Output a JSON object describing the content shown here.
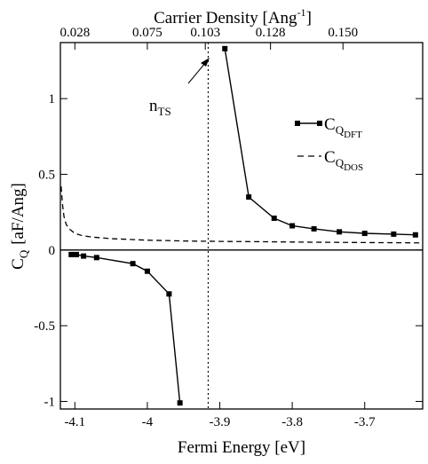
{
  "chart_data": {
    "type": "line",
    "xlabel": "Fermi Energy [eV]",
    "ylabel_main": "C",
    "ylabel_sub": "Q",
    "ylabel_unit": "[aF/Ang]",
    "top_axis_label": "Carrier Density [Ang",
    "top_axis_exponent": "-1",
    "top_axis_close": "]",
    "xlim": [
      -4.12,
      -3.62
    ],
    "ylim": [
      -1.05,
      1.37
    ],
    "grid": false,
    "legend_position": "right",
    "x_ticks": [
      {
        "value": -4.1,
        "label": "-4.1"
      },
      {
        "value": -4.0,
        "label": "-4"
      },
      {
        "value": -3.9,
        "label": "-3.9"
      },
      {
        "value": -3.8,
        "label": "-3.8"
      },
      {
        "value": -3.7,
        "label": "-3.7"
      }
    ],
    "y_ticks": [
      {
        "value": -1,
        "label": "-1"
      },
      {
        "value": -0.5,
        "label": "-0.5"
      },
      {
        "value": 0,
        "label": "0"
      },
      {
        "value": 0.5,
        "label": "0.5"
      },
      {
        "value": 1,
        "label": "1"
      }
    ],
    "top_ticks": [
      {
        "position": -4.1,
        "label": "0.028"
      },
      {
        "position": -4.0,
        "label": "0.075"
      },
      {
        "position": -3.92,
        "label": "0.103"
      },
      {
        "position": -3.83,
        "label": "0.128"
      },
      {
        "position": -3.73,
        "label": "0.150"
      }
    ],
    "series": [
      {
        "name_main": "C",
        "name_sub": "Q",
        "name_subsub": "DFT",
        "style": "solid-square-markers",
        "segments": [
          {
            "x": [
              -4.105,
              -4.098,
              -4.088,
              -4.07,
              -4.02,
              -4.0,
              -3.97,
              -3.955
            ],
            "y": [
              -0.03,
              -0.03,
              -0.04,
              -0.05,
              -0.09,
              -0.14,
              -0.29,
              -1.01
            ]
          },
          {
            "x": [
              -3.893,
              -3.86,
              -3.825,
              -3.8,
              -3.77,
              -3.735,
              -3.7,
              -3.66,
              -3.63
            ],
            "y": [
              1.33,
              0.35,
              0.21,
              0.16,
              0.14,
              0.12,
              0.11,
              0.105,
              0.1
            ]
          }
        ]
      },
      {
        "name_main": "C",
        "name_sub": "Q",
        "name_subsub": "DOS",
        "style": "dashed",
        "x": [
          -4.119,
          -4.117,
          -4.115,
          -4.112,
          -4.108,
          -4.1,
          -4.09,
          -4.075,
          -4.05,
          -4.0,
          -3.95,
          -3.9,
          -3.85,
          -3.8,
          -3.75,
          -3.7,
          -3.65,
          -3.62
        ],
        "y": [
          0.42,
          0.3,
          0.22,
          0.17,
          0.14,
          0.11,
          0.095,
          0.085,
          0.075,
          0.065,
          0.06,
          0.057,
          0.055,
          0.053,
          0.051,
          0.049,
          0.048,
          0.047
        ]
      }
    ],
    "reference_line": {
      "x": -3.916,
      "style": "dotted"
    },
    "annotation": {
      "main": "n",
      "sub": "TS"
    }
  }
}
